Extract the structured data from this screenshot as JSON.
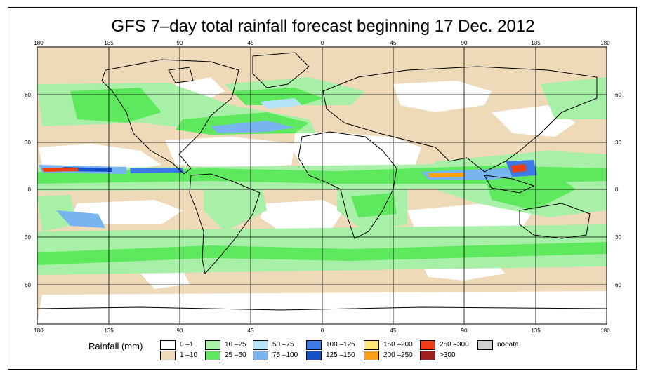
{
  "title": "GFS 7–day total rainfall forecast beginning 17 Dec. 2012",
  "axes": {
    "lon_ticks": [
      "180",
      "135",
      "90",
      "45",
      "0",
      "45",
      "90",
      "135",
      "180"
    ],
    "lat_ticks_left": [
      "60",
      "30",
      "0",
      "30",
      "60"
    ],
    "lat_ticks_right": [
      "60",
      "30",
      "0",
      "30",
      "60"
    ]
  },
  "legend": {
    "label": "Rainfall (mm)",
    "items": [
      {
        "label": "0 –1",
        "color": "#ffffff"
      },
      {
        "label": "1 –10",
        "color": "#eed9b8"
      },
      {
        "label": "10 –25",
        "color": "#a8f0a8"
      },
      {
        "label": "25 –50",
        "color": "#5ee85e"
      },
      {
        "label": "50 –75",
        "color": "#b4e4f8"
      },
      {
        "label": "75 –100",
        "color": "#78b4f0"
      },
      {
        "label": "100 –125",
        "color": "#3c78e6"
      },
      {
        "label": "125 –150",
        "color": "#1450c8"
      },
      {
        "label": "150 –200",
        "color": "#ffe678"
      },
      {
        "label": "200 –250",
        "color": "#ffa014"
      },
      {
        "label": "250 –300",
        "color": "#f03c14"
      },
      {
        "label": ">300",
        "color": "#a01e1e"
      },
      {
        "label": "nodata",
        "color": "#d2d2d2"
      }
    ]
  }
}
